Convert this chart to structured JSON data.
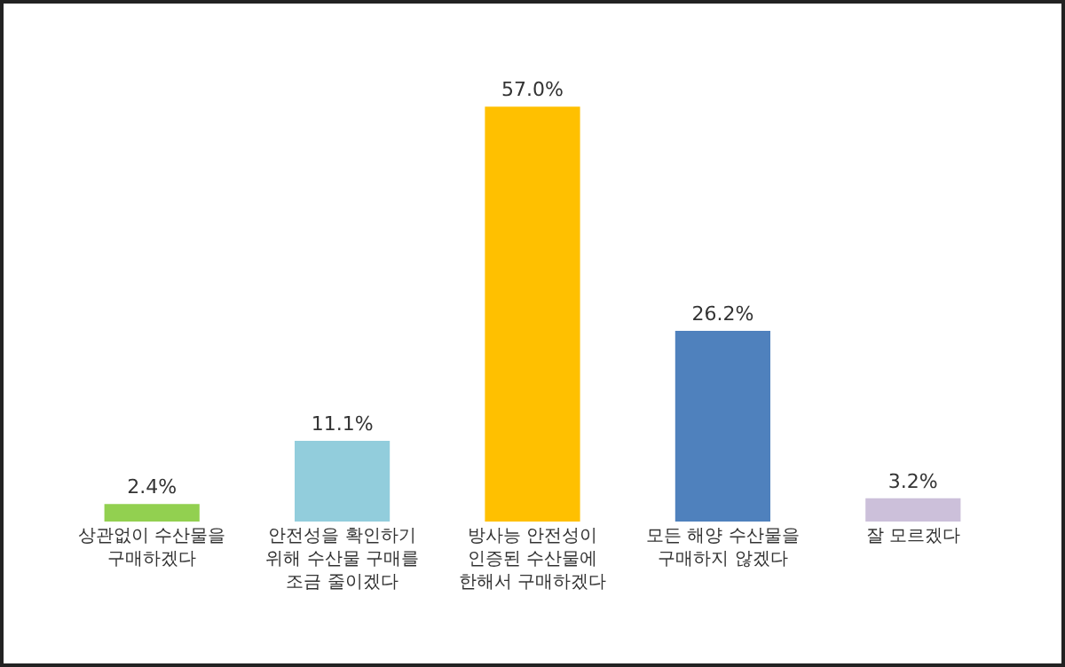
{
  "chart_data": {
    "type": "bar",
    "categories": [
      "상관없이 수산물을\n구매하겠다",
      "안전성을 확인하기\n위해 수산물 구매를\n조금 줄이겠다",
      "방사능 안전성이\n인증된 수산물에\n한해서 구매하겠다",
      "모든 해양 수산물을\n구매하지 않겠다",
      "잘 모르겠다"
    ],
    "values": [
      2.4,
      11.1,
      57.0,
      26.2,
      3.2
    ],
    "value_labels": [
      "2.4%",
      "11.1%",
      "57.0%",
      "26.2%",
      "3.2%"
    ],
    "colors": [
      "#92d050",
      "#92cddc",
      "#ffc000",
      "#4f81bd",
      "#ccc0da"
    ]
  }
}
